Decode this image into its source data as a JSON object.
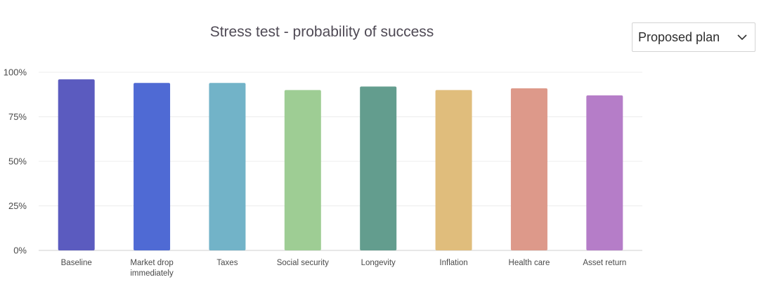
{
  "header": {
    "title": "Stress test - probability of success"
  },
  "plan_select": {
    "selected": "Proposed plan",
    "icon": "chevron-down-icon"
  },
  "chart_data": {
    "type": "bar",
    "title": "Stress test - probability of success",
    "xlabel": "",
    "ylabel": "",
    "ylim": [
      0,
      100
    ],
    "yticks": [
      {
        "value": 0,
        "label": "0%"
      },
      {
        "value": 25,
        "label": "25%"
      },
      {
        "value": 50,
        "label": "50%"
      },
      {
        "value": 75,
        "label": "75%"
      },
      {
        "value": 100,
        "label": "100%"
      }
    ],
    "grid": true,
    "categories": [
      [
        "Baseline"
      ],
      [
        "Market drop",
        "immediately"
      ],
      [
        "Taxes"
      ],
      [
        "Social security"
      ],
      [
        "Longevity"
      ],
      [
        "Inflation"
      ],
      [
        "Health care"
      ],
      [
        "Asset return"
      ]
    ],
    "values": [
      96,
      94,
      94,
      90,
      92,
      90,
      91,
      87
    ],
    "colors": [
      "#5b5bbf",
      "#4f6ad4",
      "#72b3c8",
      "#9ecd94",
      "#639d8e",
      "#e0bd7c",
      "#dd998a",
      "#b57dc8"
    ]
  }
}
